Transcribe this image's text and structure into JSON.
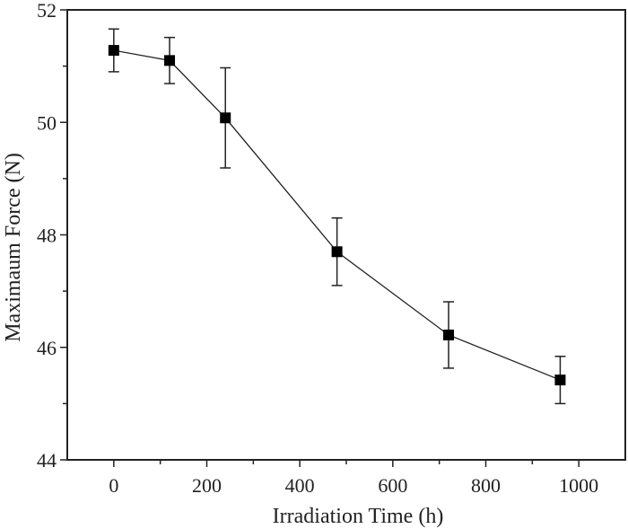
{
  "chart_data": {
    "type": "line",
    "title": "",
    "xlabel": "Irradiation Time (h)",
    "ylabel": "Maximaum Force (N)",
    "xlim": [
      -100,
      1100
    ],
    "ylim": [
      44,
      52
    ],
    "x_ticks": [
      0,
      200,
      400,
      600,
      800,
      1000
    ],
    "x_minor_ticks": [
      100,
      300,
      500,
      700,
      900
    ],
    "y_ticks": [
      44,
      46,
      48,
      50,
      52
    ],
    "y_minor_ticks": [
      45,
      47,
      49,
      51
    ],
    "grid": false,
    "legend": null,
    "marker": "square",
    "color": "#000000",
    "series": [
      {
        "name": "Maximum Force",
        "x": [
          0,
          120,
          240,
          480,
          720,
          960
        ],
        "y": [
          51.28,
          51.1,
          50.08,
          47.7,
          46.22,
          45.42
        ],
        "error": [
          0.38,
          0.41,
          0.89,
          0.6,
          0.59,
          0.42
        ]
      }
    ]
  }
}
